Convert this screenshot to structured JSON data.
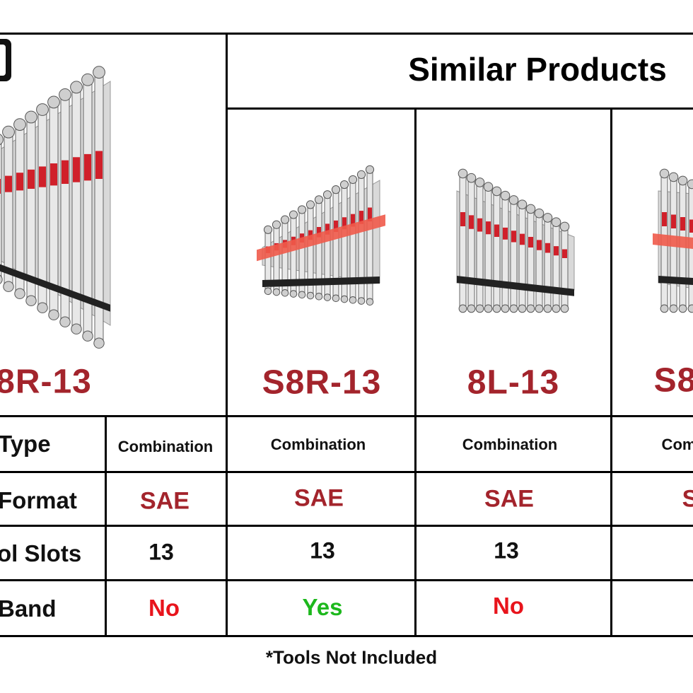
{
  "header": {
    "title": "Similar Products"
  },
  "row_labels": [
    "Type",
    "Format",
    "ol Slots",
    "Band"
  ],
  "products": [
    {
      "name": "8R-13",
      "type": "Combination",
      "format": "SAE",
      "slots": 13,
      "band": "No"
    },
    {
      "name": "S8R-13",
      "type": "Combination",
      "format": "SAE",
      "slots": 13,
      "band": "Yes"
    },
    {
      "name": "8L-13",
      "type": "Combination",
      "format": "SAE",
      "slots": 13,
      "band": "No"
    },
    {
      "name": "S8",
      "type": "Com",
      "format": "S"
    }
  ],
  "footnote": "*Tools Not Included"
}
